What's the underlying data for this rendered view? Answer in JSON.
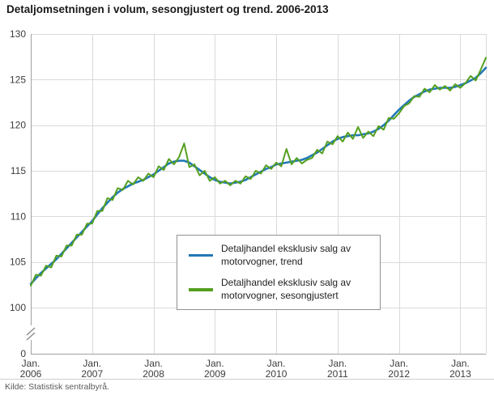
{
  "source": "Kilde: Statistisk sentralbyrå.",
  "chart_data": {
    "type": "line",
    "title": "Detaljomsetningen i volum, sesongjustert og trend. 2006-2013",
    "xlabel": "",
    "ylabel": "",
    "x_frequency": "monthly",
    "x_range": "2006-01 to 2013-06",
    "ylim": [
      100,
      130
    ],
    "yticks": [
      100,
      105,
      110,
      115,
      120,
      125,
      130
    ],
    "y_axis_break_to_zero": true,
    "zero_tick_label": "0",
    "grid": true,
    "legend_position": "inside-bottom-center",
    "x_ticks": [
      {
        "month": "Jan.",
        "year": "2006"
      },
      {
        "month": "Jan.",
        "year": "2007"
      },
      {
        "month": "Jan.",
        "year": "2008"
      },
      {
        "month": "Jan.",
        "year": "2009"
      },
      {
        "month": "Jan.",
        "year": "2010"
      },
      {
        "month": "Jan.",
        "year": "2011"
      },
      {
        "month": "Jan.",
        "year": "2012"
      },
      {
        "month": "Jan.",
        "year": "2013"
      }
    ],
    "series": [
      {
        "name": "Detaljhandel eksklusiv salg av motorvogner, trend",
        "color": "#2179b5",
        "values": [
          102.6,
          103.2,
          103.8,
          104.3,
          104.8,
          105.3,
          105.9,
          106.5,
          107.1,
          107.7,
          108.3,
          108.9,
          109.5,
          110.2,
          110.9,
          111.5,
          112.1,
          112.6,
          113.0,
          113.3,
          113.6,
          113.8,
          114.0,
          114.3,
          114.6,
          115.0,
          115.4,
          115.8,
          116.0,
          116.1,
          116.1,
          115.9,
          115.5,
          115.1,
          114.7,
          114.3,
          114.0,
          113.8,
          113.7,
          113.6,
          113.7,
          113.8,
          114.0,
          114.3,
          114.6,
          114.9,
          115.2,
          115.4,
          115.7,
          115.8,
          115.9,
          116.0,
          116.1,
          116.2,
          116.4,
          116.7,
          117.0,
          117.4,
          117.8,
          118.2,
          118.5,
          118.7,
          118.8,
          118.9,
          118.9,
          119.0,
          119.1,
          119.3,
          119.6,
          120.0,
          120.5,
          121.1,
          121.7,
          122.2,
          122.7,
          123.1,
          123.4,
          123.7,
          123.9,
          124.0,
          124.1,
          124.1,
          124.1,
          124.2,
          124.4,
          124.6,
          124.9,
          125.2,
          125.7,
          126.3
        ]
      },
      {
        "name": "Detaljhandel eksklusiv salg av motorvogner, sesongjustert",
        "color": "#55a020",
        "values": [
          102.4,
          103.6,
          103.5,
          104.6,
          104.4,
          105.7,
          105.6,
          106.8,
          106.8,
          108.0,
          108.0,
          109.2,
          109.2,
          110.6,
          110.6,
          112.0,
          111.8,
          113.1,
          112.9,
          113.9,
          113.5,
          114.3,
          113.9,
          114.7,
          114.3,
          115.5,
          115.1,
          116.3,
          115.7,
          116.5,
          118.0,
          115.4,
          115.7,
          114.5,
          115.0,
          113.9,
          114.3,
          113.6,
          113.9,
          113.4,
          113.9,
          113.6,
          114.4,
          114.1,
          115.0,
          114.7,
          115.6,
          115.2,
          115.9,
          115.5,
          117.4,
          115.7,
          116.4,
          115.8,
          116.2,
          116.4,
          117.3,
          116.9,
          118.2,
          117.9,
          118.8,
          118.2,
          119.2,
          118.5,
          119.8,
          118.6,
          119.3,
          118.8,
          119.9,
          119.5,
          120.8,
          120.7,
          121.3,
          122.1,
          122.4,
          123.2,
          123.1,
          124.0,
          123.6,
          124.4,
          123.9,
          124.3,
          123.8,
          124.5,
          124.1,
          124.6,
          125.4,
          124.9,
          126.1,
          127.4
        ]
      }
    ]
  }
}
